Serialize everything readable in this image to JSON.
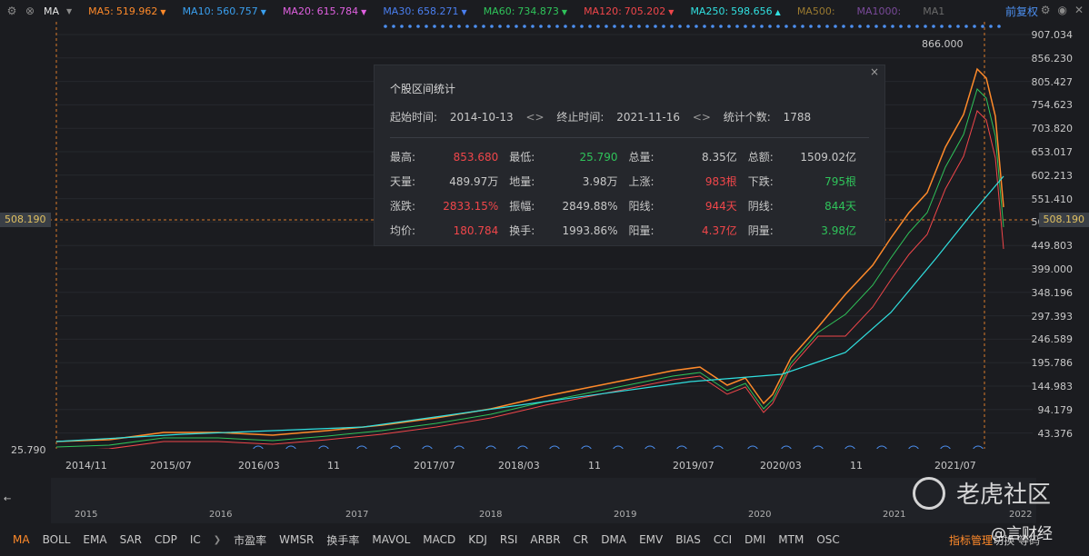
{
  "toolbar": {
    "indicator": "MA",
    "ma": [
      {
        "label": "MA5:",
        "value": "519.962",
        "color": "#ff8a2a",
        "dir": "▼"
      },
      {
        "label": "MA10:",
        "value": "560.757",
        "color": "#3aa0f0",
        "dir": "▼"
      },
      {
        "label": "MA20:",
        "value": "615.784",
        "color": "#e060e0",
        "dir": "▼"
      },
      {
        "label": "MA30:",
        "value": "658.271",
        "color": "#4a7ff0",
        "dir": "▼"
      },
      {
        "label": "MA60:",
        "value": "734.873",
        "color": "#2fc35a",
        "dir": "▼"
      },
      {
        "label": "MA120:",
        "value": "705.202",
        "color": "#f0464a",
        "dir": "▼"
      },
      {
        "label": "MA250:",
        "value": "598.656",
        "color": "#30e0e0",
        "dir": "▲"
      },
      {
        "label": "MA500:",
        "value": "",
        "color": "#9a7a30",
        "dir": ""
      },
      {
        "label": "MA1000:",
        "value": "",
        "color": "#7a4a9a",
        "dir": ""
      },
      {
        "label": "MA1",
        "value": "",
        "color": "#6a6a6a",
        "dir": ""
      }
    ],
    "adjust": "前复权",
    "icons": [
      "settings-icon",
      "eye-icon",
      "close-icon"
    ]
  },
  "yaxis": [
    "907.034",
    "856.230",
    "805.427",
    "754.623",
    "703.820",
    "653.017",
    "602.213",
    "551.410",
    "500.607",
    "449.803",
    "399.000",
    "348.196",
    "297.393",
    "246.589",
    "195.786",
    "144.983",
    "94.179",
    "43.376"
  ],
  "price_tag": "508.190",
  "annotations": {
    "high": "866.000",
    "low": "25.790"
  },
  "stats": {
    "title": "个股区间统计",
    "start_label": "起始时间:",
    "start": "2014-10-13",
    "end_label": "终止时间:",
    "end": "2021-11-16",
    "count_label": "统计个数:",
    "count": "1788",
    "rows": [
      [
        {
          "k": "最高:",
          "v": "853.680",
          "c": "red"
        },
        {
          "k": "最低:",
          "v": "25.790",
          "c": "green"
        },
        {
          "k": "总量:",
          "v": "8.35亿",
          "c": ""
        },
        {
          "k": "总额:",
          "v": "1509.02亿",
          "c": ""
        }
      ],
      [
        {
          "k": "天量:",
          "v": "489.97万",
          "c": ""
        },
        {
          "k": "地量:",
          "v": "3.98万",
          "c": ""
        },
        {
          "k": "上涨:",
          "v": "983根",
          "c": "red"
        },
        {
          "k": "下跌:",
          "v": "795根",
          "c": "green"
        }
      ],
      [
        {
          "k": "涨跌:",
          "v": "2833.15%",
          "c": "red"
        },
        {
          "k": "振幅:",
          "v": "2849.88%",
          "c": ""
        },
        {
          "k": "阳线:",
          "v": "944天",
          "c": "red"
        },
        {
          "k": "阴线:",
          "v": "844天",
          "c": "green"
        }
      ],
      [
        {
          "k": "均价:",
          "v": "180.784",
          "c": "red"
        },
        {
          "k": "换手:",
          "v": "1993.86%",
          "c": ""
        },
        {
          "k": "阳量:",
          "v": "4.37亿",
          "c": "red"
        },
        {
          "k": "阴量:",
          "v": "3.98亿",
          "c": "green"
        }
      ]
    ]
  },
  "dates": [
    "2014/11",
    "2015/07",
    "2016/03",
    "11",
    "2017/07",
    "2018/03",
    "11",
    "2019/07",
    "2020/03",
    "11",
    "2021/07"
  ],
  "overview_years": [
    "2015",
    "2016",
    "2017",
    "2018",
    "2019",
    "2020",
    "2021",
    "2022"
  ],
  "tabs": [
    "MA",
    "BOLL",
    "EMA",
    "SAR",
    "CDP",
    "IC",
    "市盈率",
    "WMSR",
    "换手率",
    "MAVOL",
    "MACD",
    "KDJ",
    "RSI",
    "ARBR",
    "CR",
    "DMA",
    "EMV",
    "BIAS",
    "CCI",
    "DMI",
    "MTM",
    "OSC"
  ],
  "tab_manager": "指标管理",
  "tab_more": "切换 等码",
  "watermark": {
    "text": "老虎社区",
    "handle": "@言财经"
  }
}
